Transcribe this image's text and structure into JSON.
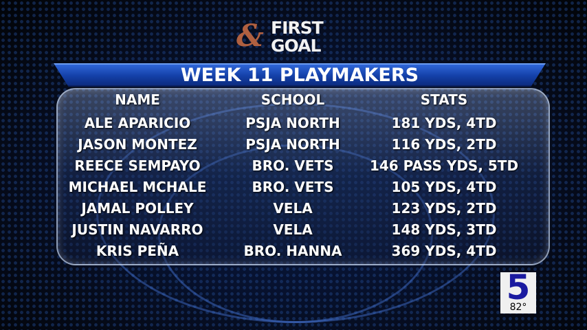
{
  "logo": {
    "amp": "&",
    "line1": "FIRST",
    "line2": "GOAL"
  },
  "title": "WEEK 11 PLAYMAKERS",
  "headers": [
    "NAME",
    "SCHOOL",
    "STATS"
  ],
  "rows": [
    [
      "ALE APARICIO",
      "PSJA NORTH",
      "181 YDS, 4TD"
    ],
    [
      "JASON MONTEZ",
      "PSJA NORTH",
      "116 YDS, 2TD"
    ],
    [
      "REECE SEMPAYO",
      "BRO. VETS",
      "146 PASS YDS, 5TD"
    ],
    [
      "MICHAEL MCHALE",
      "BRO. VETS",
      "105 YDS, 4TD"
    ],
    [
      "JAMAL POLLEY",
      "VELA",
      "123 YDS, 2TD"
    ],
    [
      "JUSTIN NAVARRO",
      "VELA",
      "148 YDS, 3TD"
    ],
    [
      "KRIS PEÑA",
      "BRO. HANNA",
      "369 YDS, 4TD"
    ]
  ],
  "channel_bug": {
    "number": "5",
    "temperature": "82°"
  },
  "colors": {
    "banner": "#1c4cc0",
    "channel": "#1a1aa0"
  }
}
